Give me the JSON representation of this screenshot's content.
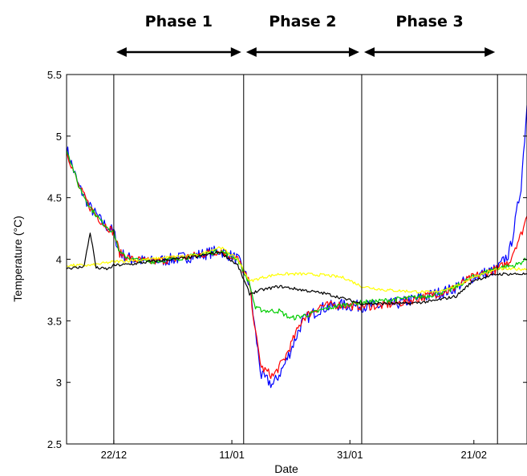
{
  "chart_data": {
    "type": "line",
    "title": "",
    "xlabel": "Date",
    "ylabel": "Temperature (°C)",
    "ylim": [
      2.5,
      5.5
    ],
    "yticks": [
      "2.5",
      "3",
      "3.5",
      "4",
      "4.5",
      "5",
      "5.5"
    ],
    "xlim": [
      "2005-12-14",
      "2006-03-02"
    ],
    "xticks": [
      {
        "date": "2005-12-22",
        "label": "22/12"
      },
      {
        "date": "2006-01-11",
        "label": "11/01"
      },
      {
        "date": "2006-01-31",
        "label": "31/01"
      },
      {
        "date": "2006-02-21",
        "label": "21/02"
      }
    ],
    "grid": false,
    "legend": "none",
    "phase_dividers": [
      "2005-12-22",
      "2006-01-13",
      "2006-02-02",
      "2006-02-25"
    ],
    "phases": [
      {
        "label": "Phase 1",
        "start": "2005-12-22",
        "end": "2006-01-13"
      },
      {
        "label": "Phase 2",
        "start": "2006-01-13",
        "end": "2006-02-02"
      },
      {
        "label": "Phase 3",
        "start": "2006-02-02",
        "end": "2006-02-25"
      }
    ],
    "series": [
      {
        "color": "#0000ff",
        "x": [
          "2005-12-14",
          "2005-12-16",
          "2005-12-18",
          "2005-12-20",
          "2005-12-22",
          "2005-12-23",
          "2005-12-25",
          "2005-12-28",
          "2006-01-01",
          "2006-01-05",
          "2006-01-09",
          "2006-01-12",
          "2006-01-14",
          "2006-01-15",
          "2006-01-16",
          "2006-01-18",
          "2006-01-20",
          "2006-01-23",
          "2006-01-26",
          "2006-01-29",
          "2006-02-01",
          "2006-02-05",
          "2006-02-09",
          "2006-02-13",
          "2006-02-17",
          "2006-02-21",
          "2006-02-25",
          "2006-02-27",
          "2006-02-28",
          "2006-03-01",
          "2006-03-02"
        ],
        "values": [
          4.9,
          4.6,
          4.42,
          4.3,
          4.22,
          4.05,
          4.0,
          3.98,
          4.0,
          4.03,
          4.07,
          4.0,
          3.8,
          3.4,
          3.05,
          2.98,
          3.15,
          3.5,
          3.6,
          3.63,
          3.62,
          3.62,
          3.65,
          3.7,
          3.75,
          3.86,
          3.92,
          4.05,
          4.3,
          4.6,
          5.25
        ]
      },
      {
        "color": "#ff0000",
        "x": [
          "2005-12-14",
          "2005-12-16",
          "2005-12-18",
          "2005-12-20",
          "2005-12-22",
          "2005-12-23",
          "2005-12-25",
          "2005-12-28",
          "2006-01-01",
          "2006-01-05",
          "2006-01-09",
          "2006-01-12",
          "2006-01-14",
          "2006-01-15",
          "2006-01-16",
          "2006-01-18",
          "2006-01-20",
          "2006-01-23",
          "2006-01-26",
          "2006-01-29",
          "2006-02-01",
          "2006-02-05",
          "2006-02-09",
          "2006-02-13",
          "2006-02-17",
          "2006-02-21",
          "2006-02-25",
          "2006-02-27",
          "2006-02-28",
          "2006-03-01",
          "2006-03-02"
        ],
        "values": [
          4.88,
          4.6,
          4.42,
          4.3,
          4.22,
          4.05,
          4.0,
          3.98,
          4.0,
          4.03,
          4.07,
          4.0,
          3.8,
          3.4,
          3.12,
          3.05,
          3.2,
          3.52,
          3.62,
          3.63,
          3.62,
          3.62,
          3.65,
          3.7,
          3.75,
          3.86,
          3.92,
          3.98,
          4.1,
          4.2,
          4.35
        ]
      },
      {
        "color": "#00cc00",
        "x": [
          "2005-12-14",
          "2005-12-16",
          "2005-12-18",
          "2005-12-20",
          "2005-12-22",
          "2005-12-23",
          "2005-12-25",
          "2005-12-28",
          "2006-01-01",
          "2006-01-05",
          "2006-01-09",
          "2006-01-12",
          "2006-01-14",
          "2006-01-15",
          "2006-01-17",
          "2006-01-19",
          "2006-01-21",
          "2006-01-24",
          "2006-01-27",
          "2006-01-30",
          "2006-02-02",
          "2006-02-05",
          "2006-02-09",
          "2006-02-13",
          "2006-02-17",
          "2006-02-21",
          "2006-02-25",
          "2006-02-28",
          "2006-03-02"
        ],
        "values": [
          4.9,
          4.6,
          4.42,
          4.3,
          4.22,
          4.05,
          4.0,
          3.98,
          4.0,
          4.03,
          4.07,
          4.0,
          3.8,
          3.6,
          3.58,
          3.58,
          3.52,
          3.55,
          3.6,
          3.63,
          3.65,
          3.66,
          3.68,
          3.7,
          3.75,
          3.86,
          3.93,
          3.95,
          4.0
        ]
      },
      {
        "color": "#ffff00",
        "x": [
          "2005-12-14",
          "2005-12-18",
          "2005-12-22",
          "2005-12-28",
          "2006-01-01",
          "2006-01-05",
          "2006-01-09",
          "2006-01-12",
          "2006-01-14",
          "2006-01-16",
          "2006-01-19",
          "2006-01-23",
          "2006-01-27",
          "2006-01-30",
          "2006-02-02",
          "2006-02-06",
          "2006-02-10",
          "2006-02-14",
          "2006-02-18",
          "2006-02-21",
          "2006-02-25",
          "2006-03-02"
        ],
        "values": [
          3.95,
          3.95,
          3.98,
          4.0,
          4.02,
          4.03,
          4.1,
          4.0,
          3.82,
          3.85,
          3.88,
          3.88,
          3.87,
          3.85,
          3.78,
          3.75,
          3.74,
          3.73,
          3.78,
          3.86,
          3.92,
          3.92
        ]
      },
      {
        "color": "#000000",
        "x": [
          "2005-12-14",
          "2005-12-16",
          "2005-12-17",
          "2005-12-18",
          "2005-12-19",
          "2005-12-21",
          "2005-12-22",
          "2005-12-25",
          "2005-12-28",
          "2006-01-01",
          "2006-01-05",
          "2006-01-09",
          "2006-01-12",
          "2006-01-14",
          "2006-01-16",
          "2006-01-19",
          "2006-01-23",
          "2006-01-27",
          "2006-01-30",
          "2006-02-02",
          "2006-02-06",
          "2006-02-10",
          "2006-02-14",
          "2006-02-18",
          "2006-02-21",
          "2006-02-25",
          "2006-03-02"
        ],
        "values": [
          3.93,
          3.93,
          3.95,
          4.22,
          3.93,
          3.92,
          3.95,
          3.96,
          3.98,
          4.0,
          4.02,
          4.06,
          3.95,
          3.72,
          3.75,
          3.78,
          3.75,
          3.72,
          3.68,
          3.64,
          3.64,
          3.64,
          3.66,
          3.7,
          3.83,
          3.88,
          3.88
        ]
      }
    ]
  }
}
